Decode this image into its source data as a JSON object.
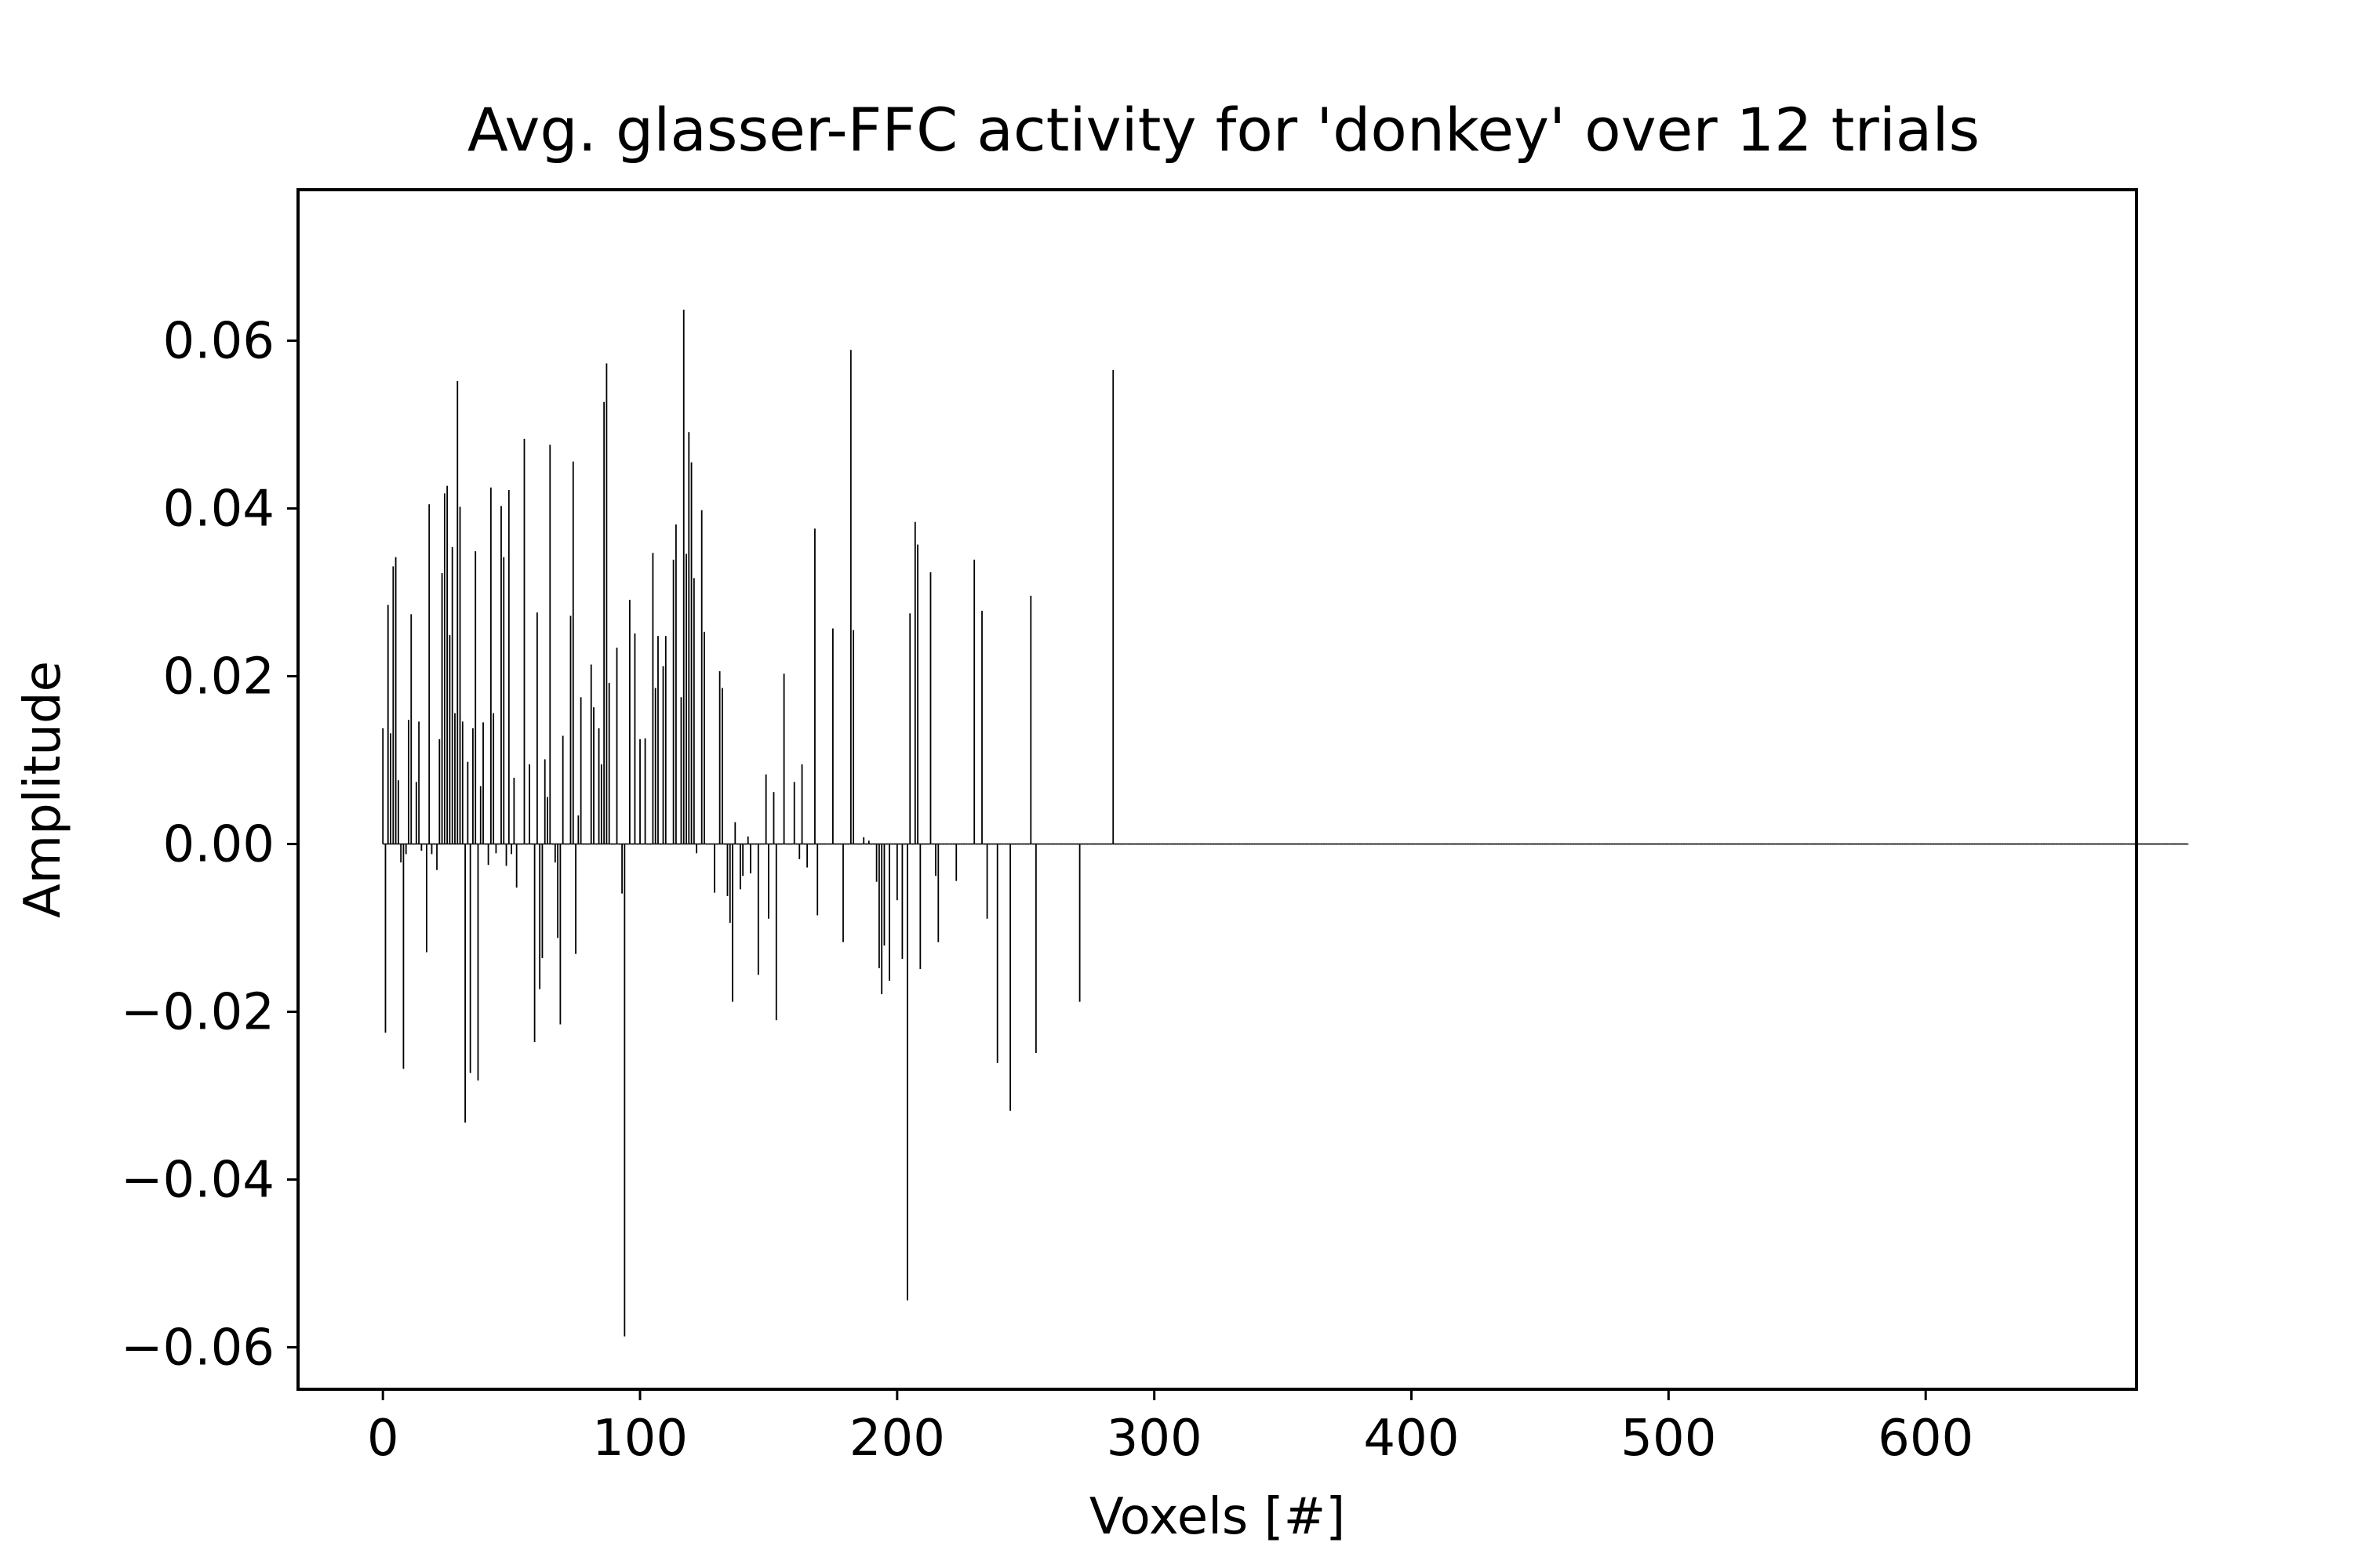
{
  "chart_data": {
    "type": "bar",
    "title": "Avg. glasser-FFC activity for 'donkey' over 12 trials",
    "xlabel": "Voxels [#]",
    "ylabel": "Amplitude",
    "xlim": [
      -33,
      682
    ],
    "ylim": [
      -0.065,
      0.078
    ],
    "x_ticks": [
      0,
      100,
      200,
      300,
      400,
      500,
      600
    ],
    "x_tick_labels": [
      "0",
      "100",
      "200",
      "300",
      "400",
      "500",
      "600"
    ],
    "y_ticks": [
      -0.06,
      -0.04,
      -0.02,
      0.0,
      0.02,
      0.04,
      0.06
    ],
    "y_tick_labels": [
      "−0.06",
      "−0.04",
      "−0.02",
      "0.00",
      "0.02",
      "0.04",
      "0.06"
    ],
    "grid": false,
    "legend": "none",
    "bar_color": "#000000",
    "x_start": 0,
    "values": [
      0.0138,
      -0.0225,
      0.0285,
      0.0132,
      0.0331,
      0.0342,
      0.0076,
      -0.0022,
      -0.0268,
      -0.0012,
      0.0148,
      0.0274,
      0.0,
      0.0074,
      0.0146,
      -0.0008,
      0.0,
      -0.0129,
      0.0405,
      -0.0012,
      0.0,
      -0.0031,
      0.0125,
      0.0323,
      0.0418,
      0.0427,
      0.0249,
      0.0354,
      0.0156,
      0.0552,
      0.0402,
      0.0146,
      -0.0332,
      0.0098,
      -0.0273,
      0.0138,
      0.0349,
      -0.0282,
      0.0069,
      0.0145,
      0.0,
      -0.0025,
      0.0425,
      0.0156,
      -0.0011,
      0.0,
      0.0403,
      0.0342,
      -0.0026,
      0.0422,
      -0.0012,
      0.0079,
      -0.0052,
      0.0,
      0.0,
      0.0483,
      0.0,
      0.0095,
      0.0,
      -0.0236,
      0.0276,
      -0.0173,
      -0.0136,
      0.0101,
      0.0056,
      0.0476,
      0.0,
      -0.0022,
      -0.0112,
      -0.0215,
      0.0129,
      0.0,
      0.0,
      0.0272,
      0.0456,
      -0.0131,
      0.0034,
      0.0175,
      0.0,
      0.0,
      0.0,
      0.0214,
      0.0163,
      0.0,
      0.0138,
      0.0095,
      0.0527,
      0.0573,
      0.0192,
      0.0,
      0.0,
      0.0234,
      0.0,
      -0.0059,
      -0.0587,
      0.0,
      0.0291,
      0.0,
      0.0251,
      0.0,
      0.0125,
      0.0,
      0.0126,
      0.0,
      0.0,
      0.0347,
      0.0186,
      0.0248,
      0.0,
      0.0212,
      0.0248,
      0.0,
      0.0,
      0.0339,
      0.0381,
      0.0,
      0.0175,
      0.0637,
      0.0346,
      0.0491,
      0.0455,
      0.0317,
      -0.0011,
      0.0,
      0.0398,
      0.0253,
      0.0,
      0.0,
      0.0,
      -0.0058,
      0.0,
      0.0206,
      0.0186,
      0.0,
      -0.0062,
      -0.0094,
      -0.0188,
      0.0026,
      0.0,
      -0.0054,
      -0.0038,
      0.0,
      0.0009,
      -0.0035,
      0.0,
      0.0,
      -0.0156,
      0.0,
      0.0,
      0.0083,
      -0.0089,
      0.0,
      0.0062,
      -0.021,
      0.0,
      0.0,
      0.0203,
      0.0,
      0.0,
      0.0,
      0.0074,
      0.0,
      -0.0018,
      0.0095,
      0.0,
      -0.0028,
      0.0,
      0.0,
      0.0376,
      -0.0085,
      0.0,
      0.0,
      0.0,
      0.0,
      0.0,
      0.0257,
      0.0,
      0.0,
      0.0,
      -0.0117,
      0.0,
      0.0,
      0.0589,
      0.0255,
      0.0,
      0.0,
      0.0,
      0.0008,
      0.0,
      0.0004,
      0.0,
      0.0,
      -0.0045,
      -0.0148,
      -0.0179,
      -0.0121,
      0.0,
      -0.0163,
      0.0,
      0.0,
      -0.0067,
      0.0,
      -0.0137,
      0.0,
      -0.0544,
      0.0275,
      0.0,
      0.0384,
      0.0357,
      -0.0149,
      0.0,
      0.0,
      0.0,
      0.0324,
      0.0,
      -0.0038,
      -0.0117,
      0.0,
      0.0,
      0.0,
      0.0,
      0.0,
      0.0,
      -0.0044,
      0.0,
      0.0,
      0.0,
      0.0,
      0.0,
      0.0,
      0.0339,
      0.0,
      0.0,
      0.0278,
      0.0,
      -0.0089,
      0.0,
      0.0,
      0.0,
      -0.0261,
      0.0,
      0.0,
      0.0,
      0.0,
      -0.0318,
      0.0,
      0.0,
      0.0,
      0.0,
      0.0,
      0.0,
      0.0,
      0.0296,
      0.0,
      -0.0249,
      0.0,
      0.0,
      0.0,
      0.0,
      0.0,
      0.0,
      0.0,
      0.0,
      0.0,
      0.0,
      0.0,
      0.0,
      0.0,
      0.0,
      0.0,
      0.0,
      -0.0188,
      0.0,
      0.0,
      0.0,
      0.0,
      0.0,
      0.0,
      0.0,
      0.0,
      0.0,
      0.0,
      0.0,
      0.0,
      0.0565,
      0.0,
      0.0,
      0.0,
      0.0,
      0.0,
      0.0,
      0.0,
      0.0,
      0.0,
      0.0,
      0.0,
      0.0,
      0.0,
      0.0,
      0.0,
      0.0,
      0.0,
      0.0,
      0.0,
      0.0,
      0.0,
      0.0,
      0.0,
      0.0,
      0.0,
      0.0,
      0.0,
      0.0,
      0.0,
      0.0,
      0.0,
      0.0,
      0.0,
      0.0,
      0.0,
      0.0,
      0.0,
      0.0,
      0.0,
      0.0,
      0.0,
      0.0,
      0.0,
      0.0,
      0.0,
      0.0,
      0.0,
      0.0,
      0.0,
      0.0,
      0.0,
      0.0,
      0.0,
      0.0,
      0.0,
      0.0,
      0.0,
      0.0,
      0.0,
      0.0,
      0.0,
      0.0,
      0.0,
      0.0,
      0.0,
      0.0,
      0.0,
      0.0,
      0.0,
      0.0,
      0.0,
      0.0,
      0.0,
      0.0,
      0.0,
      0.0,
      0.0,
      0.0,
      0.0,
      0.0,
      0.0,
      0.0,
      0.0,
      0.0,
      0.0,
      0.0,
      0.0,
      0.0,
      0.0,
      0.0,
      0.0,
      0.0,
      0.0,
      0.0,
      0.0,
      0.0,
      0.0,
      0.0,
      0.0,
      0.0,
      0.0,
      0.0,
      0.0,
      0.0,
      0.0,
      0.0,
      0.0,
      0.0,
      0.0,
      0.0,
      0.0,
      0.0,
      0.0,
      0.0,
      0.0,
      0.0,
      0.0,
      0.0,
      0.0,
      0.0,
      0.0,
      0.0,
      0.0,
      0.0,
      0.0,
      0.0,
      0.0,
      0.0,
      0.0,
      0.0,
      0.0,
      0.0,
      0.0,
      0.0,
      0.0,
      0.0,
      0.0,
      0.0,
      0.0,
      0.0,
      0.0,
      0.0,
      0.0,
      0.0,
      0.0,
      0.0,
      0.0,
      0.0,
      0.0,
      0.0,
      0.0,
      0.0,
      0.0,
      0.0,
      0.0,
      0.0,
      0.0,
      0.0,
      0.0,
      0.0,
      0.0,
      0.0,
      0.0,
      0.0,
      0.0,
      0.0,
      0.0,
      0.0,
      0.0,
      0.0,
      0.0,
      0.0,
      0.0,
      0.0,
      0.0,
      0.0,
      0.0,
      0.0,
      0.0,
      0.0,
      0.0,
      0.0,
      0.0,
      0.0,
      0.0,
      0.0,
      0.0,
      0.0,
      0.0,
      0.0,
      0.0,
      0.0,
      0.0,
      0.0,
      0.0,
      0.0,
      0.0,
      0.0,
      0.0,
      0.0,
      0.0,
      0.0,
      0.0,
      0.0,
      0.0,
      0.0,
      0.0,
      0.0,
      0.0,
      0.0,
      0.0,
      0.0,
      0.0,
      0.0,
      0.0,
      0.0,
      0.0,
      0.0,
      0.0,
      0.0,
      0.0,
      0.0,
      0.0,
      0.0,
      0.0,
      0.0,
      0.0,
      0.0,
      0.0,
      0.0,
      0.0,
      0.0,
      0.0,
      0.0,
      0.0,
      0.0,
      0.0,
      0.0,
      0.0,
      0.0,
      0.0,
      0.0,
      0.0,
      0.0,
      0.0,
      0.0,
      0.0,
      0.0,
      0.0,
      0.0,
      0.0,
      0.0,
      0.0,
      0.0,
      0.0,
      0.0,
      0.0,
      0.0,
      0.0,
      0.0,
      0.0,
      0.0,
      0.0,
      0.0,
      0.0,
      0.0,
      0.0,
      0.0,
      0.0,
      0.0,
      0.0,
      0.0,
      0.0,
      0.0,
      0.0,
      0.0,
      0.0,
      0.0,
      0.0,
      0.0,
      0.0,
      0.0,
      0.0,
      0.0,
      0.0,
      0.0,
      0.0,
      0.0,
      0.0,
      0.0,
      0.0,
      0.0,
      0.0,
      0.0,
      0.0,
      0.0,
      0.0,
      0.0,
      0.0,
      0.0,
      0.0,
      0.0,
      0.0,
      0.0,
      0.0,
      0.0,
      0.0,
      0.0,
      0.0,
      0.0,
      0.0,
      0.0,
      0.0,
      0.0,
      0.0,
      0.0,
      0.0,
      0.0,
      0.0,
      0.0,
      0.0,
      0.0,
      0.0,
      0.0,
      0.0,
      0.0,
      0.0,
      0.0,
      0.0,
      0.0,
      0.0,
      0.0,
      0.0,
      0.0,
      0.0,
      0.0,
      0.0,
      0.0,
      0.0,
      0.0,
      0.0,
      0.0,
      0.0,
      0.0,
      0.0,
      0.0,
      0.0,
      0.0,
      0.0,
      0.0,
      0.0,
      0.0,
      0.0,
      0.0,
      0.0,
      0.0,
      0.0,
      0.0,
      0.0,
      0.0,
      0.0,
      0.0,
      0.0,
      0.0,
      0.0,
      0.0,
      0.0,
      0.0,
      0.0,
      0.0,
      0.0,
      0.0,
      0.0,
      0.0,
      0.0,
      0.0,
      0.0,
      0.0,
      0.0,
      0.0,
      0.0,
      0.0,
      0.0,
      0.0,
      0.0,
      0.0,
      0.0,
      0.0,
      0.0,
      0.0,
      0.0,
      0.0,
      0.0,
      0.0,
      0.0,
      0.0,
      0.0,
      0.0,
      0.0,
      0.0,
      0.0,
      0.0,
      0.0,
      0.0,
      0.0,
      0.0,
      0.0,
      0.0,
      0.0,
      0.0,
      0.0,
      0.0,
      0.0,
      0.0,
      0.0,
      0.0,
      0.0,
      0.0
    ]
  }
}
